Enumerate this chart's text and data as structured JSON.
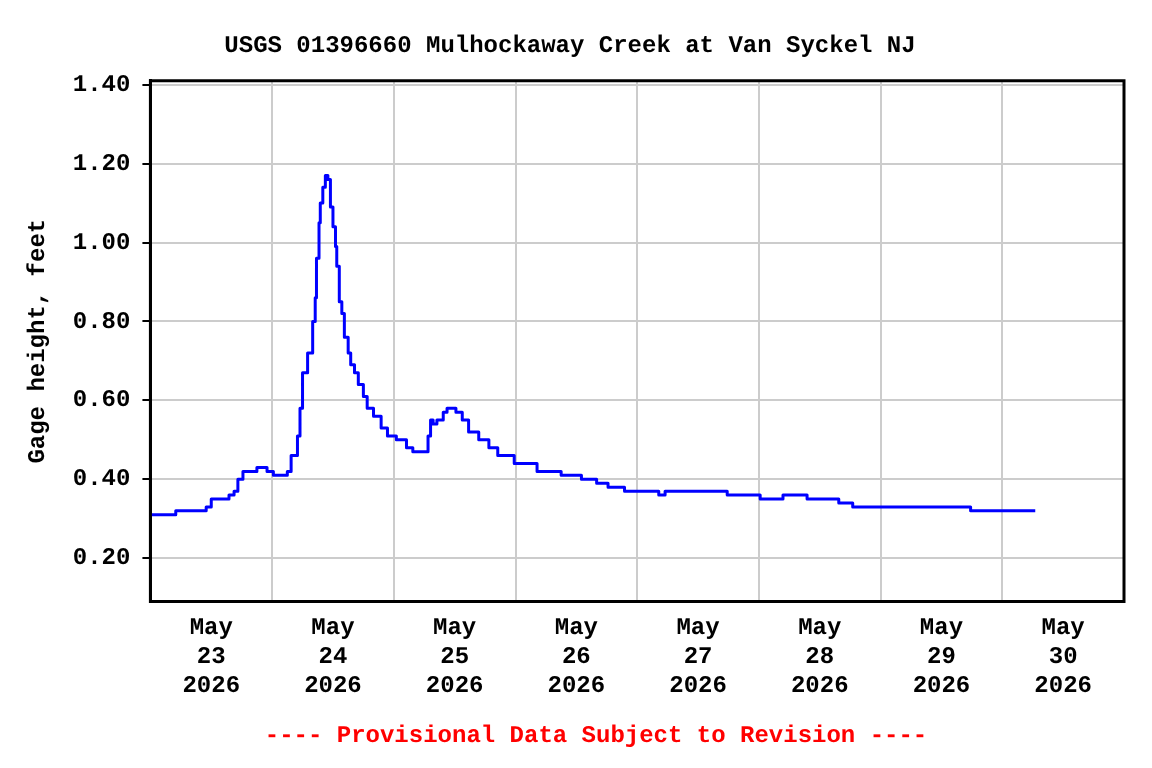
{
  "chart_data": {
    "type": "step",
    "title": "USGS 01396660 Mulhockaway Creek at Van Syckel NJ",
    "ylabel": "Gage height, feet",
    "annotations": [
      "---- Provisional Data Subject to Revision ----"
    ],
    "x": [
      "2026-05-23T00:00",
      "2026-05-23T05:00",
      "2026-05-23T11:00",
      "2026-05-23T12:00",
      "2026-05-23T15:30",
      "2026-05-23T16:30",
      "2026-05-23T17:15",
      "2026-05-23T18:15",
      "2026-05-23T21:00",
      "2026-05-23T23:00",
      "2026-05-24T00:15",
      "2026-05-24T03:00",
      "2026-05-24T03:45",
      "2026-05-24T05:00",
      "2026-05-24T05:30",
      "2026-05-24T06:00",
      "2026-05-24T07:00",
      "2026-05-24T08:00",
      "2026-05-24T08:30",
      "2026-05-24T08:45",
      "2026-05-24T09:15",
      "2026-05-24T09:30",
      "2026-05-24T10:00",
      "2026-05-24T10:30",
      "2026-05-24T11:00",
      "2026-05-24T11:30",
      "2026-05-24T12:00",
      "2026-05-24T12:30",
      "2026-05-24T12:45",
      "2026-05-24T13:15",
      "2026-05-24T13:45",
      "2026-05-24T14:15",
      "2026-05-24T15:00",
      "2026-05-24T15:30",
      "2026-05-24T16:15",
      "2026-05-24T17:00",
      "2026-05-24T18:00",
      "2026-05-24T18:45",
      "2026-05-24T20:00",
      "2026-05-24T21:30",
      "2026-05-24T22:45",
      "2026-05-25T00:30",
      "2026-05-25T02:30",
      "2026-05-25T03:45",
      "2026-05-25T06:30",
      "2026-05-25T06:45",
      "2026-05-25T07:15",
      "2026-05-25T07:45",
      "2026-05-25T08:30",
      "2026-05-25T09:45",
      "2026-05-25T10:30",
      "2026-05-25T12:15",
      "2026-05-25T13:30",
      "2026-05-25T14:45",
      "2026-05-25T16:45",
      "2026-05-25T18:45",
      "2026-05-25T20:30",
      "2026-05-25T23:45",
      "2026-05-26T04:15",
      "2026-05-26T09:00",
      "2026-05-26T13:00",
      "2026-05-26T16:00",
      "2026-05-26T18:15",
      "2026-05-26T21:30",
      "2026-05-27T04:15",
      "2026-05-27T05:30",
      "2026-05-27T17:45",
      "2026-05-28T00:15",
      "2026-05-28T04:45",
      "2026-05-28T09:30",
      "2026-05-28T15:45",
      "2026-05-28T18:30",
      "2026-05-29T17:45",
      "2026-05-30T06:30"
    ],
    "series": [
      {
        "color": "#0000ff",
        "values": [
          0.31,
          0.32,
          0.33,
          0.35,
          0.36,
          0.37,
          0.4,
          0.42,
          0.43,
          0.42,
          0.41,
          0.42,
          0.46,
          0.51,
          0.58,
          0.67,
          0.72,
          0.8,
          0.86,
          0.96,
          1.05,
          1.1,
          1.14,
          1.17,
          1.16,
          1.09,
          1.04,
          0.99,
          0.94,
          0.85,
          0.82,
          0.76,
          0.72,
          0.69,
          0.67,
          0.64,
          0.61,
          0.58,
          0.56,
          0.53,
          0.51,
          0.5,
          0.48,
          0.47,
          0.47,
          0.51,
          0.55,
          0.54,
          0.55,
          0.57,
          0.58,
          0.57,
          0.55,
          0.52,
          0.5,
          0.48,
          0.46,
          0.44,
          0.42,
          0.41,
          0.4,
          0.39,
          0.38,
          0.37,
          0.36,
          0.37,
          0.36,
          0.35,
          0.36,
          0.35,
          0.34,
          0.33,
          0.32,
          0.32
        ]
      }
    ],
    "xlim": [
      "2026-05-23T00:00",
      "2026-05-31T00:00"
    ],
    "xticks": [
      {
        "value": "2026-05-23T12:00",
        "label": "May\n23\n2026"
      },
      {
        "value": "2026-05-24T00:00",
        "label": null
      },
      {
        "value": "2026-05-24T12:00",
        "label": "May\n24\n2026"
      },
      {
        "value": "2026-05-25T00:00",
        "label": null
      },
      {
        "value": "2026-05-25T12:00",
        "label": "May\n25\n2026"
      },
      {
        "value": "2026-05-26T00:00",
        "label": null
      },
      {
        "value": "2026-05-26T12:00",
        "label": "May\n26\n2026"
      },
      {
        "value": "2026-05-27T00:00",
        "label": null
      },
      {
        "value": "2026-05-27T12:00",
        "label": "May\n27\n2026"
      },
      {
        "value": "2026-05-28T00:00",
        "label": null
      },
      {
        "value": "2026-05-28T12:00",
        "label": "May\n28\n2026"
      },
      {
        "value": "2026-05-29T00:00",
        "label": null
      },
      {
        "value": "2026-05-29T12:00",
        "label": "May\n29\n2026"
      },
      {
        "value": "2026-05-30T00:00",
        "label": null
      },
      {
        "value": "2026-05-30T12:00",
        "label": "May\n30\n2026"
      }
    ],
    "ylim": [
      0.09,
      1.41
    ],
    "yticks": [
      {
        "value": 0.2,
        "label": "0.20"
      },
      {
        "value": 0.4,
        "label": "0.40"
      },
      {
        "value": 0.6,
        "label": "0.60"
      },
      {
        "value": 0.8,
        "label": "0.80"
      },
      {
        "value": 1.0,
        "label": "1.00"
      },
      {
        "value": 1.2,
        "label": "1.20"
      },
      {
        "value": 1.4,
        "label": "1.40"
      }
    ],
    "grid": true
  }
}
